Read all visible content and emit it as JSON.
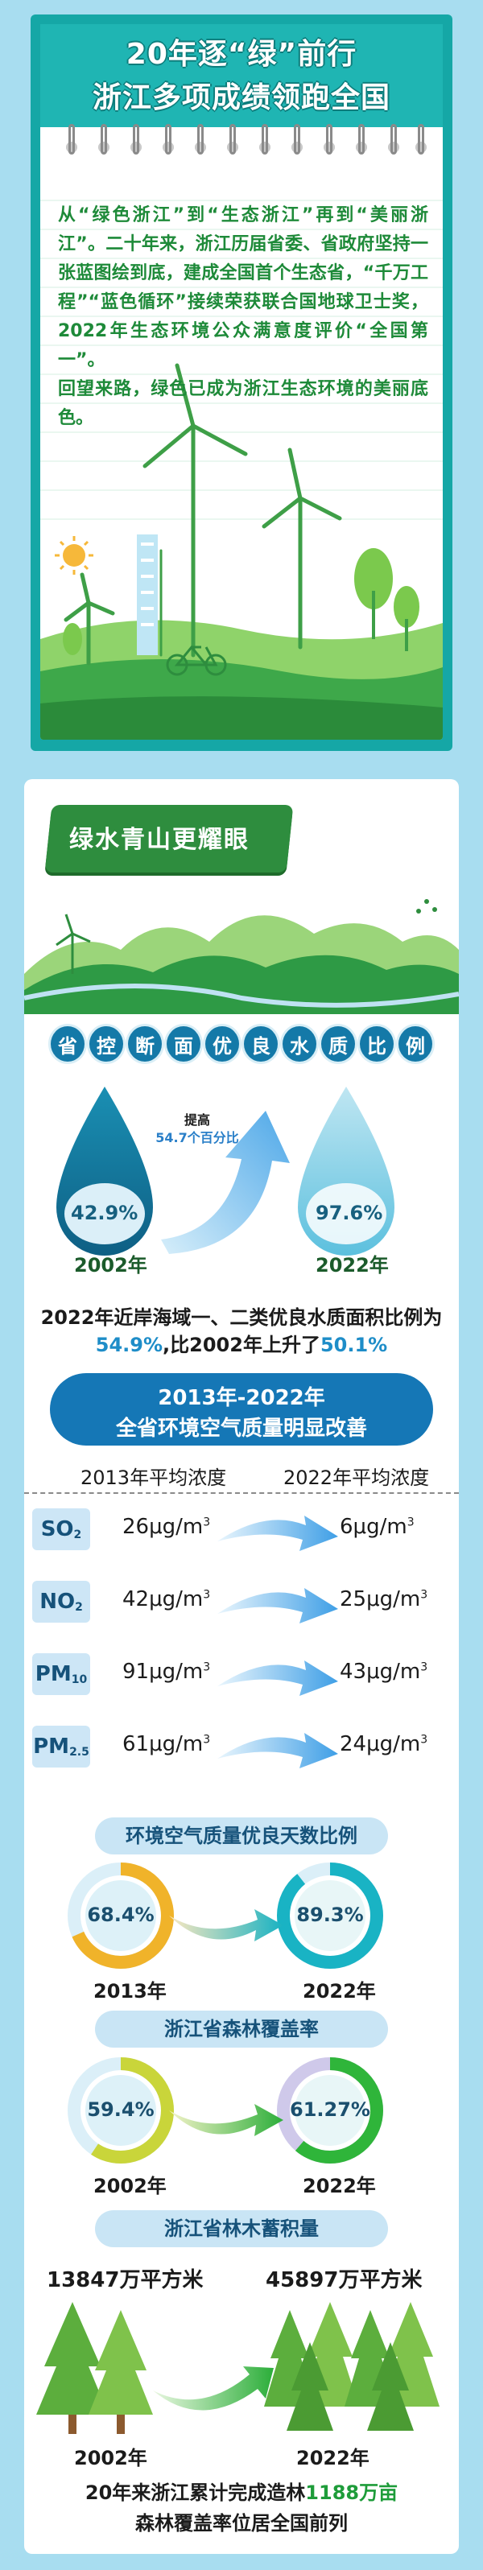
{
  "header": {
    "title_line1": "20年逐“绿”前行",
    "title_line2": "浙江多项成绩领跑全国",
    "intro_p1": "从“绿色浙江”到“生态浙江”再到“美丽浙江”。二十年来，浙江历届省委、省政府坚持一张蓝图绘到底，建成全国首个生态省，“千万工程”“蓝色循环”接续荣获联合国地球卫士奖，2022年生态环境公众满意度评价“全国第一”。",
    "intro_p2": "回望来路，绿色已成为浙江生态环境的美丽底色。"
  },
  "banner": {
    "text": "绿水青山更耀眼"
  },
  "water": {
    "title_chars": [
      "省",
      "控",
      "断",
      "面",
      "优",
      "良",
      "水",
      "质",
      "比",
      "例"
    ],
    "drop1_pct": "42.9%",
    "drop1_year": "2002年",
    "drop2_pct": "97.6%",
    "drop2_year": "2022年",
    "increase_line1": "提高",
    "increase_line2": "54.7个百分比",
    "sea_text_a": "2022年近岸海域一、二类优良水质面积比例为",
    "sea_pct": "54.9%",
    "sea_text_b": ",比2002年上升了",
    "sea_rise": "50.1%"
  },
  "air": {
    "pill_line1": "2013年-2022年",
    "pill_line2": "全省环境空气质量明显改善",
    "col1": "2013年平均浓度",
    "col2": "2022年平均浓度",
    "unit": "μg/m",
    "unit_sup": "3",
    "rows": [
      {
        "name": "SO",
        "sub": "2",
        "v2013": "26",
        "v2022": "6"
      },
      {
        "name": "NO",
        "sub": "2",
        "v2013": "42",
        "v2022": "25"
      },
      {
        "name": "PM",
        "sub": "10",
        "v2013": "91",
        "v2022": "43"
      },
      {
        "name": "PM",
        "sub": "2.5",
        "v2013": "61",
        "v2022": "24"
      }
    ]
  },
  "good_days": {
    "title": "环境空气质量优良天数比例",
    "pct_2013": "68.4%",
    "year_2013": "2013年",
    "pct_2022": "89.3%",
    "year_2022": "2022年",
    "frac_2013": 0.684,
    "frac_2022": 0.893
  },
  "forest_cover": {
    "title": "浙江省森林覆盖率",
    "pct_2002": "59.4%",
    "year_2002": "2002年",
    "pct_2022": "61.27%",
    "year_2022": "2022年",
    "frac_2002": 0.594,
    "frac_2022": 0.6127
  },
  "forest_stock": {
    "title": "浙江省林木蓄积量",
    "val_2002": "13847万平方米",
    "year_2002": "2002年",
    "val_2022": "45897万平方米",
    "year_2022": "2022年"
  },
  "footer": {
    "line1_a": "20年来浙江累计完成造林",
    "line1_hl": "1188万亩",
    "line2": "森林覆盖率位居全国前列"
  },
  "colors": {
    "teal": "#15a7a6",
    "green": "#2e8d3e",
    "blue": "#1577b6",
    "sky": "#a8ddf0"
  }
}
